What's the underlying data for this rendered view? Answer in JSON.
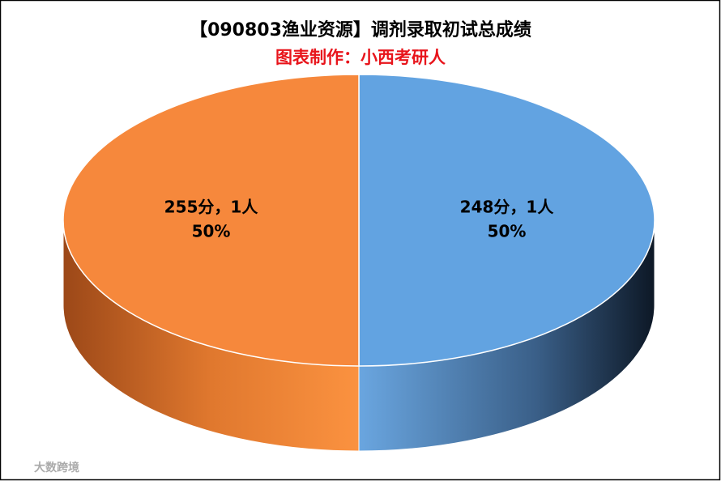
{
  "chart_data": {
    "type": "pie",
    "title": "【090803渔业资源】调剂录取初试总成绩",
    "subtitle": "图表制作：小西考研人",
    "categories": [
      "248分，1人",
      "255分，1人"
    ],
    "values": [
      50,
      50
    ],
    "value_labels": [
      "50%",
      "50%"
    ],
    "colors": [
      "#62a3e1",
      "#f6883c"
    ],
    "watermark": "大数跨境"
  }
}
